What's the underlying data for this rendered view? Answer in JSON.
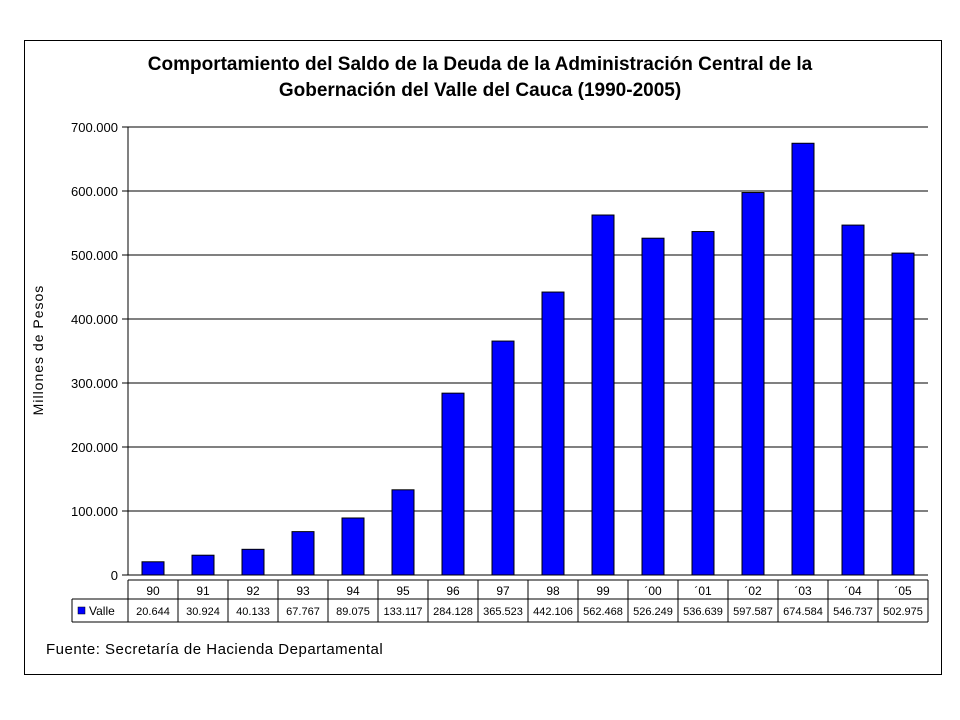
{
  "chart_data": {
    "type": "bar",
    "title_line1": "Comportamiento del Saldo de la Deuda de la Administración Central de la",
    "title_line2": "Gobernación del Valle del Cauca (1990-2005)",
    "ylabel": "Millones  de  Pesos",
    "ylim": [
      0,
      700000
    ],
    "yticks": [
      "0",
      "100.000",
      "200.000",
      "300.000",
      "400.000",
      "500.000",
      "600.000",
      "700.000"
    ],
    "grid": true,
    "categories": [
      "90",
      "91",
      "92",
      "93",
      "94",
      "95",
      "96",
      "97",
      "98",
      "99",
      "´00",
      "´01",
      "´02",
      "´03",
      "´04",
      "´05"
    ],
    "series": [
      {
        "name": "Valle",
        "color": "#0000ff",
        "values": [
          20644,
          30924,
          40133,
          67767,
          89075,
          133117,
          284128,
          365523,
          442106,
          562468,
          526249,
          536639,
          597587,
          674584,
          546737,
          502975
        ],
        "labels": [
          "20.644",
          "30.924",
          "40.133",
          "67.767",
          "89.075",
          "133.117",
          "284.128",
          "365.523",
          "442.106",
          "562.468",
          "526.249",
          "536.639",
          "597.587",
          "674.584",
          "546.737",
          "502.975"
        ]
      }
    ],
    "legend_placement": "data-table"
  },
  "source": "Fuente: Secretaría de Hacienda Departamental"
}
